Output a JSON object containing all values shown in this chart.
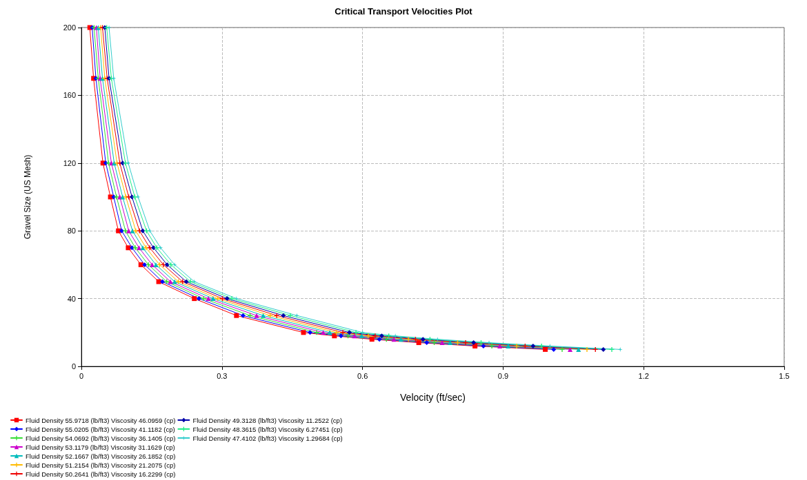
{
  "chart_data": {
    "type": "line",
    "title": "Critical Transport Velocities Plot",
    "xlabel": "Velocity (ft/sec)",
    "ylabel": "Gravel Size (US Mesh)",
    "xlim": [
      0,
      1.5
    ],
    "xticks": [
      0,
      0.3,
      0.6,
      0.9,
      1.2,
      1.5
    ],
    "ylim": [
      0,
      200
    ],
    "yticks": [
      0,
      40,
      80,
      120,
      160,
      200
    ],
    "grid": true,
    "legend": "bottom left",
    "line_style": "solid",
    "series": [
      {
        "name": "Fluid Density 55.9718 (lb/ft3) Viscosity 46.0959 (cp)",
        "color": "#ff0000",
        "marker": "square",
        "x": [
          0.018,
          0.026,
          0.046,
          0.062,
          0.079,
          0.1,
          0.127,
          0.165,
          0.241,
          0.331,
          0.474,
          0.54,
          0.62,
          0.72,
          0.84,
          0.99
        ],
        "values": [
          200,
          170,
          120,
          100,
          80,
          70,
          60,
          50,
          40,
          30,
          20,
          18,
          16,
          14,
          12,
          10
        ]
      },
      {
        "name": "Fluid Density 55.0205 (lb/ft3) Viscosity 41.1182 (cp)",
        "color": "#0000ff",
        "marker": "diamond",
        "x": [
          0.023,
          0.031,
          0.052,
          0.069,
          0.086,
          0.108,
          0.135,
          0.173,
          0.251,
          0.345,
          0.488,
          0.554,
          0.636,
          0.737,
          0.858,
          1.008
        ],
        "values": [
          200,
          170,
          120,
          100,
          80,
          70,
          60,
          50,
          40,
          30,
          20,
          18,
          16,
          14,
          12,
          10
        ]
      },
      {
        "name": "Fluid Density 54.0692 (lb/ft3) Viscosity 36.1405 (cp)",
        "color": "#33dd33",
        "marker": "cross",
        "x": [
          0.027,
          0.036,
          0.058,
          0.075,
          0.094,
          0.115,
          0.143,
          0.182,
          0.261,
          0.36,
          0.502,
          0.569,
          0.651,
          0.753,
          0.876,
          1.026
        ],
        "values": [
          200,
          170,
          120,
          100,
          80,
          70,
          60,
          50,
          40,
          30,
          20,
          18,
          16,
          14,
          12,
          10
        ]
      },
      {
        "name": "Fluid Density 53.1179 (lb/ft3) Viscosity 31.1629 (cp)",
        "color": "#cc00cc",
        "marker": "triangle",
        "x": [
          0.032,
          0.04,
          0.064,
          0.082,
          0.101,
          0.123,
          0.151,
          0.19,
          0.271,
          0.374,
          0.516,
          0.583,
          0.667,
          0.77,
          0.893,
          1.043
        ],
        "values": [
          200,
          170,
          120,
          100,
          80,
          70,
          60,
          50,
          40,
          30,
          20,
          18,
          16,
          14,
          12,
          10
        ]
      },
      {
        "name": "Fluid Density 52.1667 (lb/ft3) Viscosity 26.1852 (cp)",
        "color": "#00bbbb",
        "marker": "triangle",
        "x": [
          0.036,
          0.045,
          0.07,
          0.088,
          0.109,
          0.131,
          0.159,
          0.199,
          0.281,
          0.388,
          0.53,
          0.598,
          0.682,
          0.787,
          0.911,
          1.061
        ],
        "values": [
          200,
          170,
          120,
          100,
          80,
          70,
          60,
          50,
          40,
          30,
          20,
          18,
          16,
          14,
          12,
          10
        ]
      },
      {
        "name": "Fluid Density 51.2154 (lb/ft3) Viscosity 21.2075 (cp)",
        "color": "#ffbb00",
        "marker": "cross",
        "x": [
          0.041,
          0.05,
          0.076,
          0.095,
          0.116,
          0.138,
          0.167,
          0.207,
          0.291,
          0.403,
          0.544,
          0.612,
          0.698,
          0.803,
          0.929,
          1.079
        ],
        "values": [
          200,
          170,
          120,
          100,
          80,
          70,
          60,
          50,
          40,
          30,
          20,
          18,
          16,
          14,
          12,
          10
        ]
      },
      {
        "name": "Fluid Density 50.2641 (lb/ft3) Viscosity 16.2299 (cp)",
        "color": "#ee0000",
        "marker": "cross",
        "x": [
          0.045,
          0.055,
          0.082,
          0.101,
          0.124,
          0.146,
          0.175,
          0.216,
          0.301,
          0.417,
          0.558,
          0.627,
          0.713,
          0.82,
          0.947,
          1.097
        ],
        "values": [
          200,
          170,
          120,
          100,
          80,
          70,
          60,
          50,
          40,
          30,
          20,
          18,
          16,
          14,
          12,
          10
        ]
      },
      {
        "name": "Fluid Density 49.3128 (lb/ft3) Viscosity 11.2522 (cp)",
        "color": "#0000aa",
        "marker": "diamond",
        "x": [
          0.05,
          0.059,
          0.088,
          0.108,
          0.131,
          0.154,
          0.183,
          0.224,
          0.311,
          0.431,
          0.572,
          0.641,
          0.729,
          0.837,
          0.964,
          1.114
        ],
        "values": [
          200,
          170,
          120,
          100,
          80,
          70,
          60,
          50,
          40,
          30,
          20,
          18,
          16,
          14,
          12,
          10
        ]
      },
      {
        "name": "Fluid Density 48.3615 (lb/ft3) Viscosity 6.27451 (cp)",
        "color": "#22ee88",
        "marker": "cross",
        "x": [
          0.054,
          0.064,
          0.094,
          0.114,
          0.139,
          0.161,
          0.191,
          0.233,
          0.321,
          0.446,
          0.586,
          0.656,
          0.744,
          0.853,
          0.982,
          1.132
        ],
        "values": [
          200,
          170,
          120,
          100,
          80,
          70,
          60,
          50,
          40,
          30,
          20,
          18,
          16,
          14,
          12,
          10
        ]
      },
      {
        "name": "Fluid Density 47.4102 (lb/ft3) Viscosity 1.29684 (cp)",
        "color": "#33cccc",
        "marker": "star",
        "x": [
          0.059,
          0.069,
          0.1,
          0.121,
          0.146,
          0.169,
          0.199,
          0.241,
          0.331,
          0.46,
          0.6,
          0.67,
          0.76,
          0.87,
          1.0,
          1.15
        ],
        "values": [
          200,
          170,
          120,
          100,
          80,
          70,
          60,
          50,
          40,
          30,
          20,
          18,
          16,
          14,
          12,
          10
        ]
      }
    ]
  }
}
